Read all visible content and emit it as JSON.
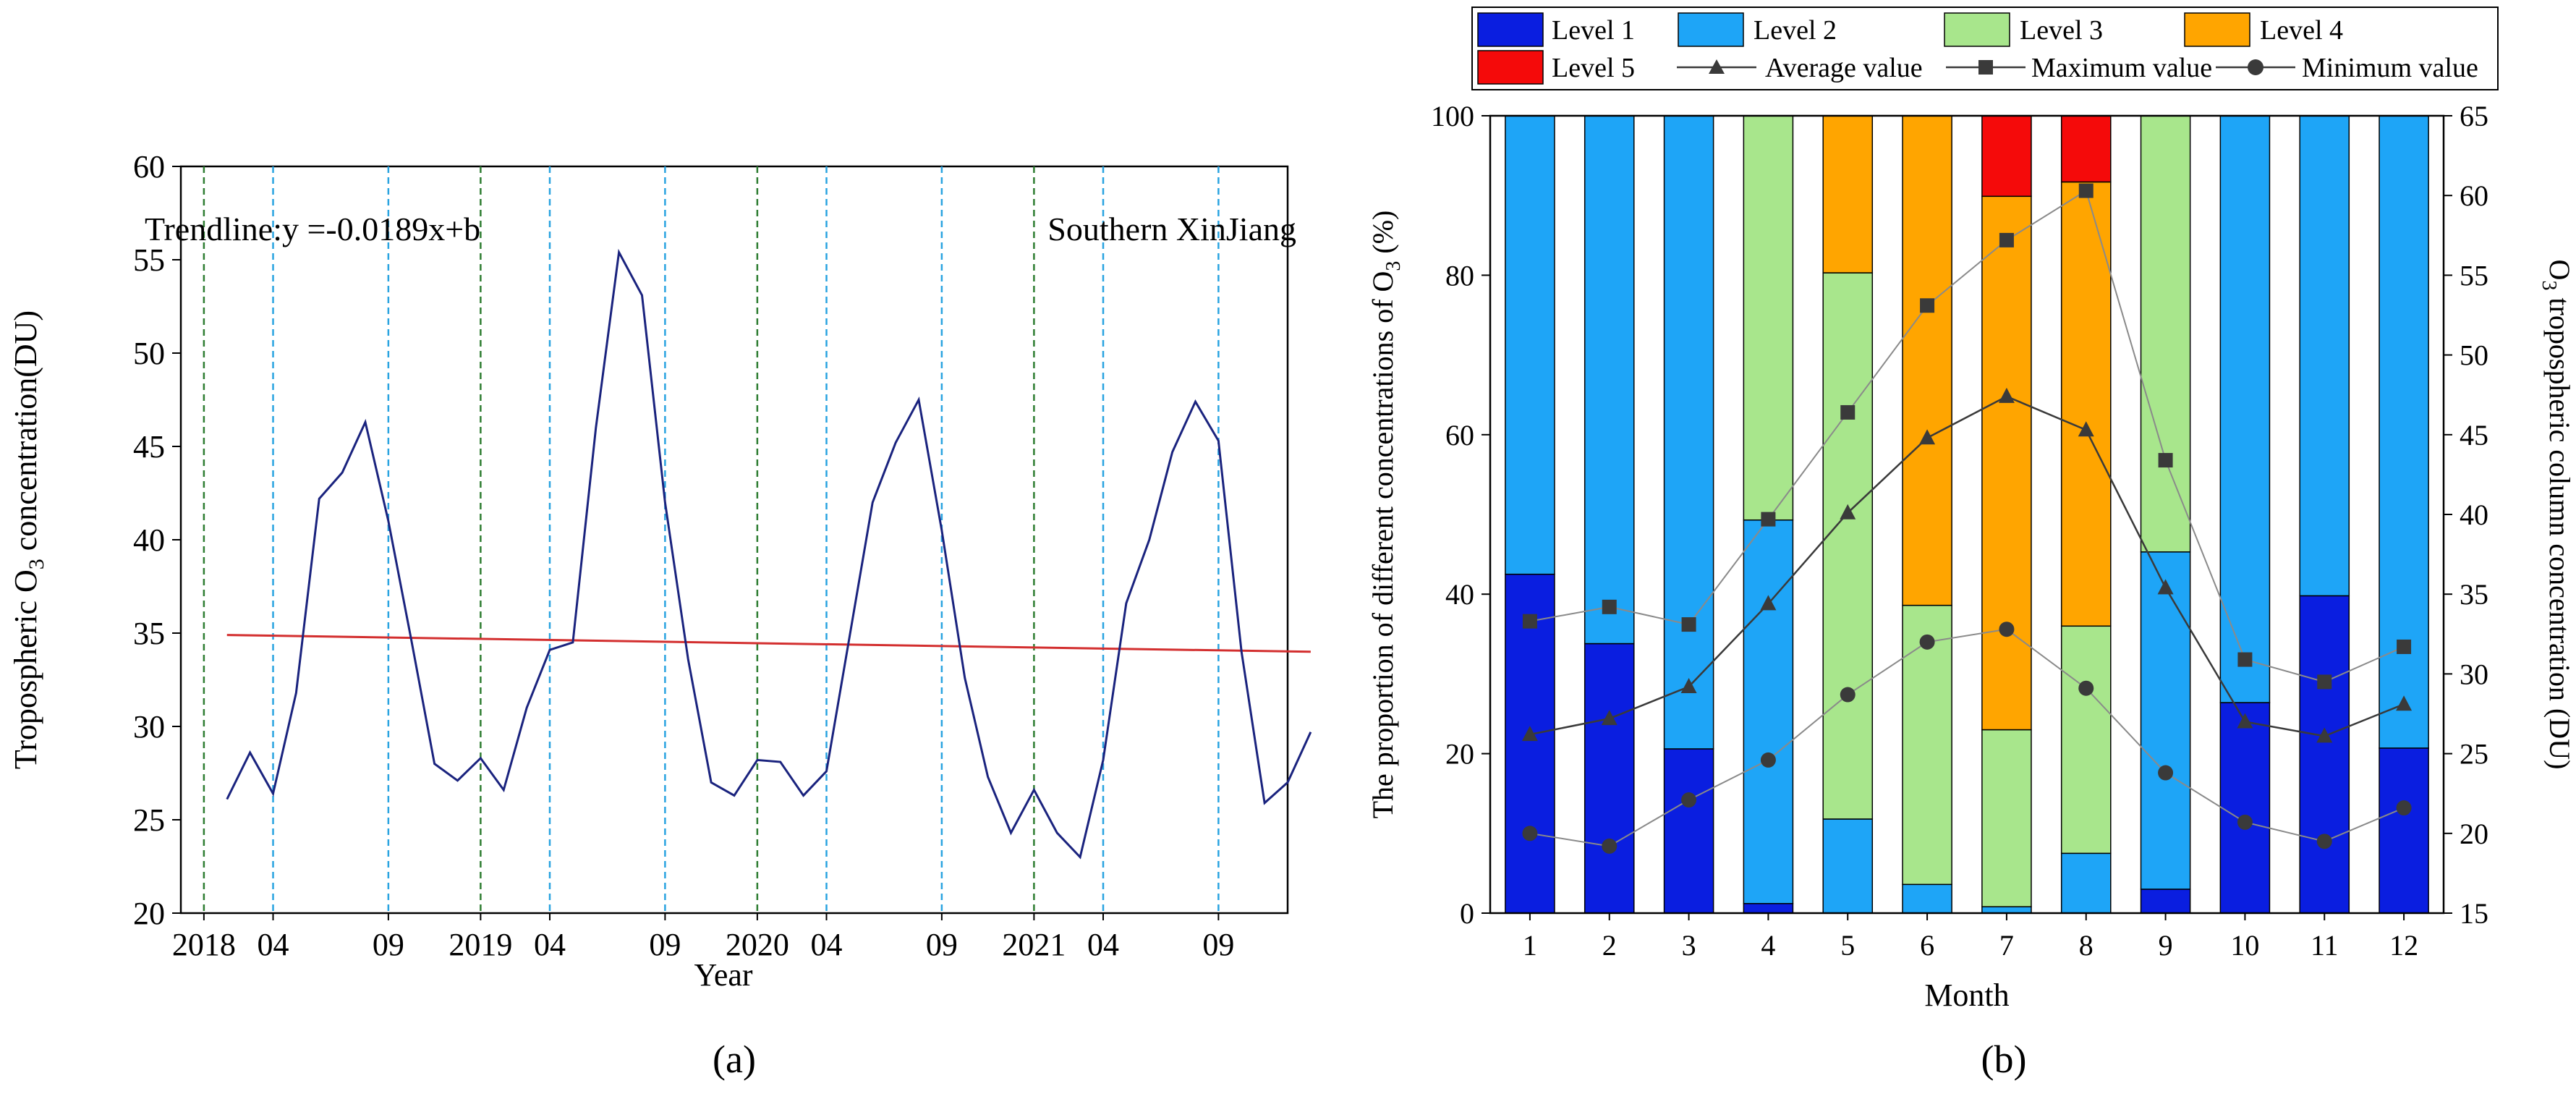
{
  "panel_a_label": "(a)",
  "panel_b_label": "(b)",
  "colors": {
    "ozone_line": "#1a237e",
    "trend_line": "#d32f2f",
    "year_marker": "#2e7d32",
    "month_marker": "#29a3e0",
    "level_1": "#0a1ee0",
    "level_2": "#1ea5f7",
    "level_3": "#a8e68c",
    "level_4": "#ffa500",
    "level_5": "#f50a0a",
    "stat_line": "#3a3a3a"
  },
  "chart_data": [
    {
      "type": "line",
      "panel": "a",
      "title": "Southern XinJiang",
      "trendline_label": "Trendline:y =-0.0189x+b",
      "xlabel": "Year",
      "ylabel": "Tropospheric O3 concentration(DU)",
      "ylabel_parts": [
        "Tropospheric O",
        "3",
        " concentration(DU)"
      ],
      "ylim": [
        20,
        60
      ],
      "yticks": [
        20,
        25,
        30,
        35,
        40,
        45,
        50,
        55,
        60
      ],
      "x_start": "2018-01",
      "x_domain_months": [
        -1,
        47
      ],
      "x_ticks": [
        {
          "month_index": 0,
          "label": "2018",
          "kind": "year"
        },
        {
          "month_index": 3,
          "label": "04",
          "kind": "month"
        },
        {
          "month_index": 8,
          "label": "09",
          "kind": "month"
        },
        {
          "month_index": 12,
          "label": "2019",
          "kind": "year"
        },
        {
          "month_index": 15,
          "label": "04",
          "kind": "month"
        },
        {
          "month_index": 20,
          "label": "09",
          "kind": "month"
        },
        {
          "month_index": 24,
          "label": "2020",
          "kind": "year"
        },
        {
          "month_index": 27,
          "label": "04",
          "kind": "month"
        },
        {
          "month_index": 32,
          "label": "09",
          "kind": "month"
        },
        {
          "month_index": 36,
          "label": "2021",
          "kind": "year"
        },
        {
          "month_index": 39,
          "label": "04",
          "kind": "month"
        },
        {
          "month_index": 44,
          "label": "09",
          "kind": "month"
        }
      ],
      "series": [
        {
          "name": "Tropospheric O3",
          "x_start_index": 1,
          "values": [
            26.1,
            28.6,
            26.4,
            31.8,
            42.2,
            43.6,
            46.3,
            41.0,
            34.6,
            28.0,
            27.1,
            28.3,
            26.6,
            31.0,
            34.1,
            34.5,
            46.0,
            55.4,
            53.1,
            42.0,
            33.6,
            27.0,
            26.3,
            28.2,
            28.1,
            26.3,
            27.6,
            34.8,
            42.0,
            45.2,
            47.5,
            40.5,
            32.6,
            27.3,
            24.3,
            26.6,
            24.3,
            23.0,
            28.2,
            36.6,
            40.0,
            44.7,
            47.4,
            45.3,
            34.0,
            25.9,
            27.0,
            29.7
          ]
        },
        {
          "name": "Trendline",
          "x_start_index": 1,
          "values": [
            34.9,
            34.0
          ],
          "x_end_index": 48
        }
      ]
    },
    {
      "type": "bar",
      "panel": "b",
      "stacked": true,
      "xlabel": "Month",
      "ylabel": "The proportion of different concentrations of O3 (%)",
      "ylabel_parts": [
        "The proportion of different concentrations of O",
        "3",
        " (%)"
      ],
      "y2label": "O3 tropospheric column concentration (DU)",
      "y2label_parts": [
        "O",
        "3",
        " tropospheric column concentration (DU)"
      ],
      "categories": [
        "1",
        "2",
        "3",
        "4",
        "5",
        "6",
        "7",
        "8",
        "9",
        "10",
        "11",
        "12"
      ],
      "ylim": [
        0,
        100
      ],
      "yticks": [
        0,
        20,
        40,
        60,
        80,
        100
      ],
      "y2lim": [
        15,
        65
      ],
      "y2ticks": [
        15,
        20,
        25,
        30,
        35,
        40,
        45,
        50,
        55,
        60,
        65
      ],
      "legend": {
        "placement": "top",
        "entries": [
          "Level 1",
          "Level 2",
          "Level 3",
          "Level 4",
          "Level 5",
          "Average value",
          "Maximum value",
          "Minimum value"
        ]
      },
      "series": [
        {
          "name": "Level 1",
          "axis": "left",
          "values": [
            42.5,
            33.8,
            20.6,
            1.2,
            0,
            0,
            0,
            0,
            3.0,
            26.4,
            39.8,
            20.7
          ]
        },
        {
          "name": "Level 2",
          "axis": "left",
          "values": [
            57.5,
            66.2,
            79.4,
            48.1,
            11.8,
            3.6,
            0.8,
            7.5,
            42.3,
            73.6,
            60.2,
            79.3
          ]
        },
        {
          "name": "Level 3",
          "axis": "left",
          "values": [
            0,
            0,
            0,
            50.7,
            68.5,
            35.0,
            22.2,
            28.5,
            54.7,
            0,
            0,
            0
          ]
        },
        {
          "name": "Level 4",
          "axis": "left",
          "values": [
            0,
            0,
            0,
            0,
            19.7,
            61.4,
            66.9,
            55.7,
            0,
            0,
            0,
            0
          ]
        },
        {
          "name": "Level 5",
          "axis": "left",
          "values": [
            0,
            0,
            0,
            0,
            0,
            0,
            10.1,
            8.3,
            0,
            0,
            0,
            0
          ]
        },
        {
          "name": "Average value",
          "axis": "right",
          "marker": "triangle",
          "values": [
            26.2,
            27.2,
            29.2,
            34.4,
            40.1,
            44.8,
            47.4,
            45.3,
            35.4,
            27.0,
            26.1,
            28.1
          ]
        },
        {
          "name": "Maximum value",
          "axis": "right",
          "marker": "square",
          "values": [
            33.3,
            34.2,
            33.1,
            39.7,
            46.4,
            53.1,
            57.2,
            60.3,
            43.4,
            30.9,
            29.5,
            31.7
          ]
        },
        {
          "name": "Minimum value",
          "axis": "right",
          "marker": "circle",
          "values": [
            20.0,
            19.2,
            22.1,
            24.6,
            28.7,
            32.0,
            32.8,
            29.1,
            23.8,
            20.7,
            19.5,
            21.6
          ]
        }
      ]
    }
  ]
}
